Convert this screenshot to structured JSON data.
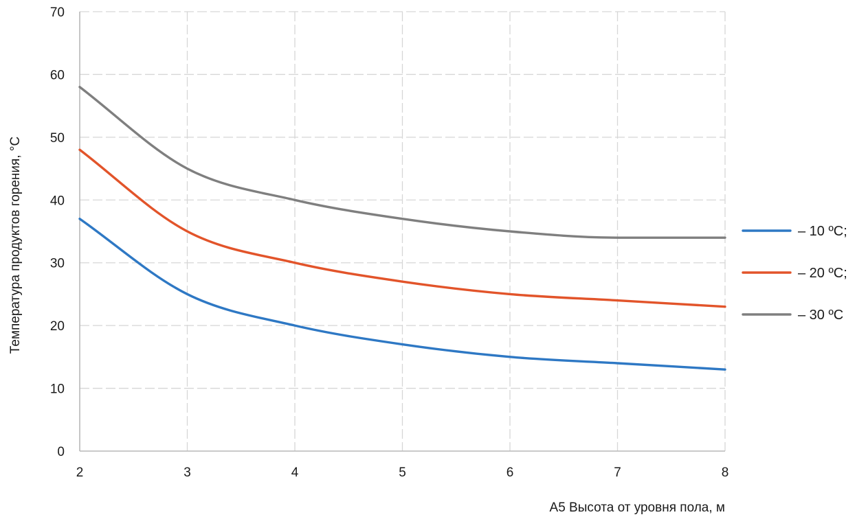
{
  "chart_data": {
    "type": "line",
    "title": "",
    "xlabel": "А5 Высота от уровня пола, м",
    "ylabel": "Температура продуктов горения, °С",
    "x": [
      2,
      3,
      4,
      5,
      6,
      7,
      8
    ],
    "xlim": [
      2,
      8
    ],
    "ylim": [
      0,
      70
    ],
    "x_ticks": [
      "2",
      "3",
      "4",
      "5",
      "6",
      "7",
      "8"
    ],
    "y_ticks": [
      "0",
      "10",
      "20",
      "30",
      "40",
      "50",
      "60",
      "70"
    ],
    "grid": true,
    "legend_position": "right",
    "series": [
      {
        "name": "– 10 ºС;",
        "color": "#2e78c4",
        "values": [
          37,
          25,
          20,
          17,
          15,
          14,
          13
        ]
      },
      {
        "name": "– 20 ºС;",
        "color": "#e2542a",
        "values": [
          48,
          35,
          30,
          27,
          25,
          24,
          23
        ]
      },
      {
        "name": "– 30 ºС",
        "color": "#7f7f7f",
        "values": [
          58,
          45,
          40,
          37,
          35,
          34,
          34
        ]
      }
    ]
  }
}
